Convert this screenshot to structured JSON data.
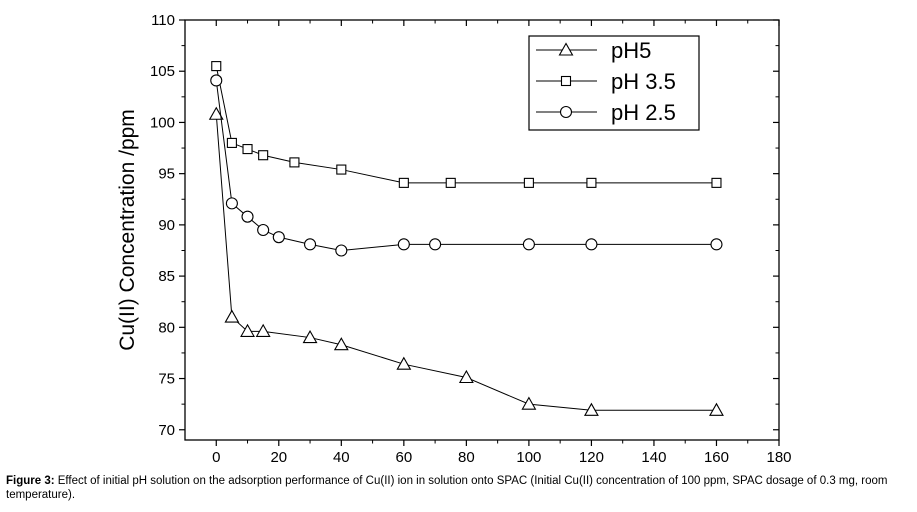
{
  "chart_data": {
    "type": "line",
    "title": "",
    "xlabel": "",
    "ylabel": "Cu(II) Concentration /ppm",
    "xlim": [
      -10,
      180
    ],
    "ylim": [
      69,
      110
    ],
    "xticks": [
      0,
      20,
      40,
      60,
      80,
      100,
      120,
      140,
      160,
      180
    ],
    "yticks": [
      70,
      75,
      80,
      85,
      90,
      95,
      100,
      105,
      110
    ],
    "legend_position": "top-right",
    "series": [
      {
        "name": "pH5",
        "marker": "triangle",
        "x": [
          0,
          5,
          10,
          15,
          30,
          40,
          60,
          80,
          100,
          120,
          160
        ],
        "y": [
          100.8,
          81.0,
          79.6,
          79.6,
          79.0,
          78.3,
          76.4,
          75.1,
          72.5,
          71.9,
          71.9
        ]
      },
      {
        "name": "pH 3.5",
        "marker": "square",
        "x": [
          0,
          5,
          10,
          15,
          25,
          40,
          60,
          75,
          100,
          120,
          160
        ],
        "y": [
          105.5,
          98.0,
          97.4,
          96.8,
          96.1,
          95.4,
          94.1,
          94.1,
          94.1,
          94.1,
          94.1
        ]
      },
      {
        "name": "pH 2.5",
        "marker": "circle",
        "x": [
          0,
          5,
          10,
          15,
          20,
          30,
          40,
          60,
          70,
          100,
          120,
          160
        ],
        "y": [
          104.1,
          92.1,
          90.8,
          89.5,
          88.8,
          88.1,
          87.5,
          88.1,
          88.1,
          88.1,
          88.1,
          88.1
        ]
      }
    ]
  },
  "caption": {
    "label": "Figure 3:",
    "text": " Effect of initial pH solution on the adsorption performance of Cu(II) ion in solution onto SPAC (Initial Cu(II) concentration of 100 ppm, SPAC dosage of 0.3 mg, room temperature)."
  }
}
